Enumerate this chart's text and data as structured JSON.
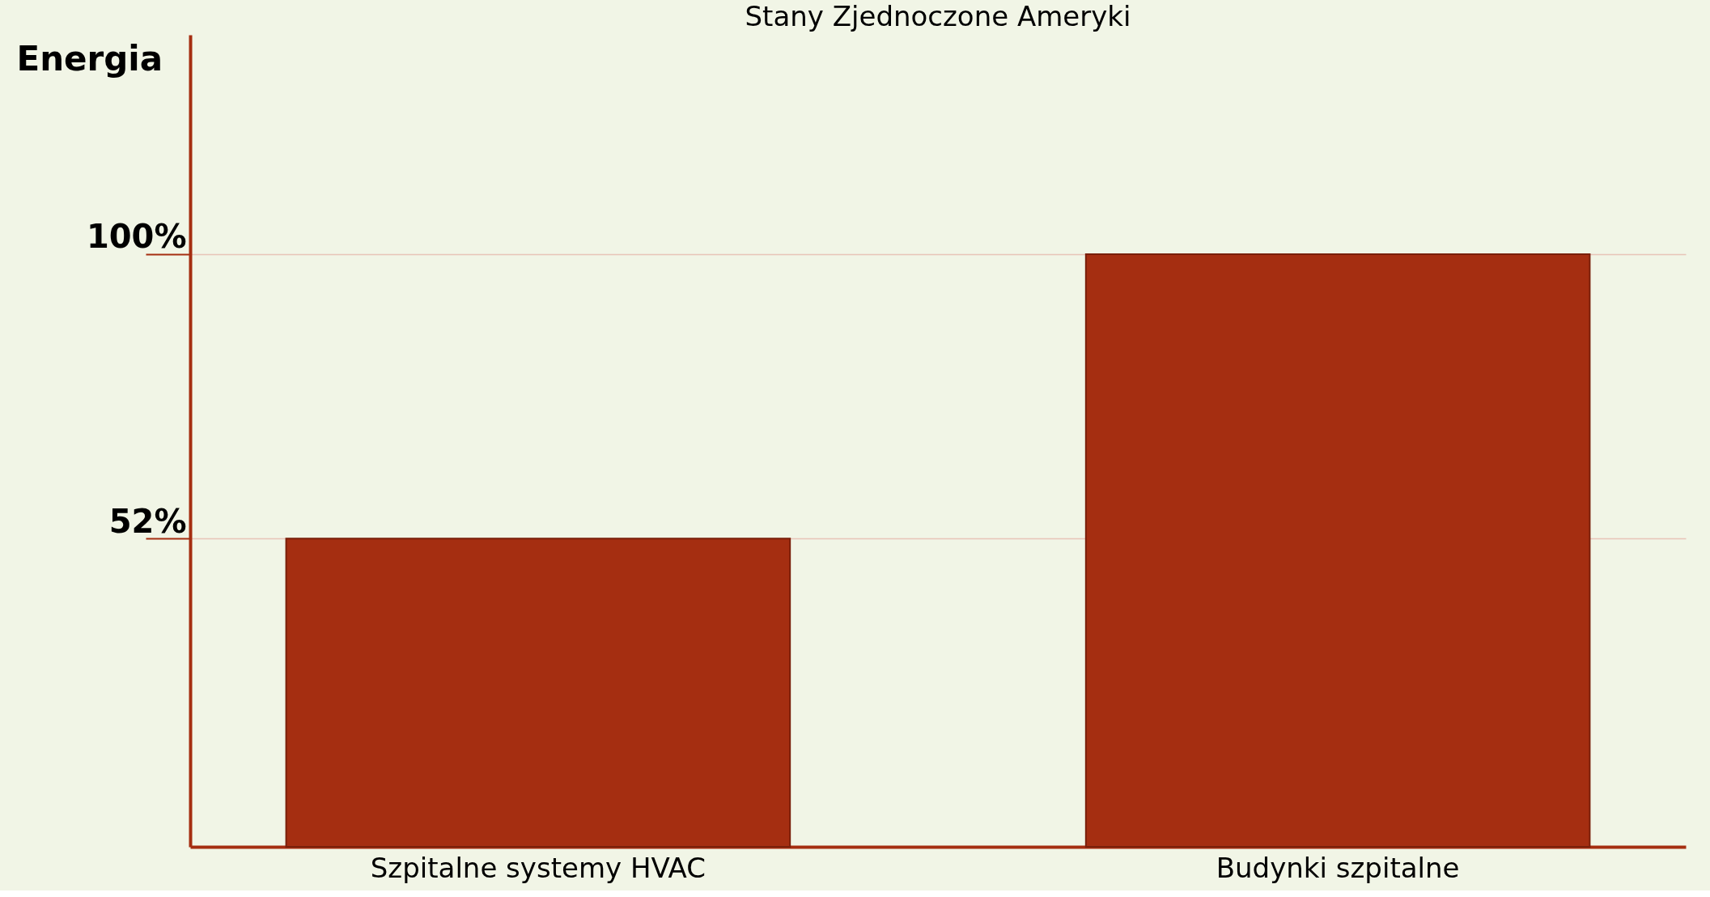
{
  "chart_data": {
    "type": "bar",
    "title": "Stany Zjednoczone Ameryki",
    "ylabel": "Energia",
    "categories": [
      "Szpitalne systemy HVAC",
      "Budynki szpitalne"
    ],
    "values": [
      52,
      100
    ],
    "color": "#a52e11",
    "ylim": [
      0,
      137
    ],
    "yticks": [
      {
        "value": 52,
        "label": "52%"
      },
      {
        "value": 100,
        "label": "100%"
      }
    ],
    "grid": "y"
  }
}
